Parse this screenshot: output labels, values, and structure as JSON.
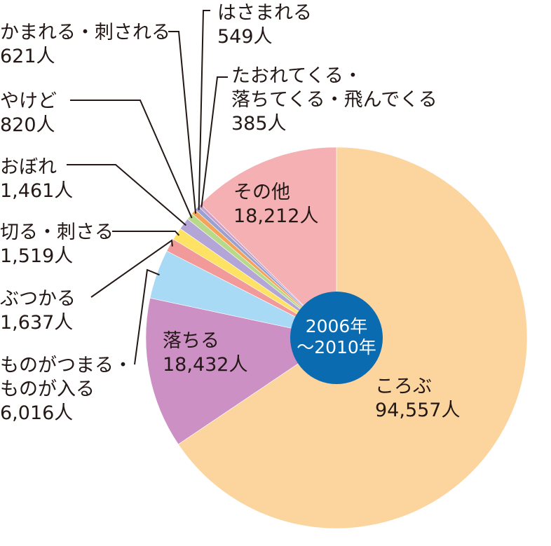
{
  "chart_data": {
    "type": "pie",
    "center_label": "2006年\n〜2010年",
    "categories": [
      "ころぶ",
      "落ちる",
      "ものがつまる・\nものが入る",
      "ぶつかる",
      "切る・刺さる",
      "おぼれ",
      "やけど",
      "かまれる・刺される",
      "はさまれる",
      "たおれてくる・\n落ちてくる・飛んでくる",
      "その他"
    ],
    "values": [
      94557,
      18432,
      6016,
      1637,
      1519,
      1461,
      820,
      621,
      549,
      385,
      18212
    ],
    "value_labels": [
      "94,557人",
      "18,432人",
      "6,016人",
      "1,637人",
      "1,519人",
      "1,461人",
      "820人",
      "621人",
      "549人",
      "385人",
      "18,212人"
    ],
    "colors": [
      "#fbd49e",
      "#cc90c4",
      "#a8daf5",
      "#f29a9a",
      "#fde264",
      "#b3a6d6",
      "#b8d88a",
      "#f4a45a",
      "#9aa0d0",
      "#c6a0cc",
      "#f4b0b3"
    ],
    "center_color": "#0a6bb0"
  }
}
